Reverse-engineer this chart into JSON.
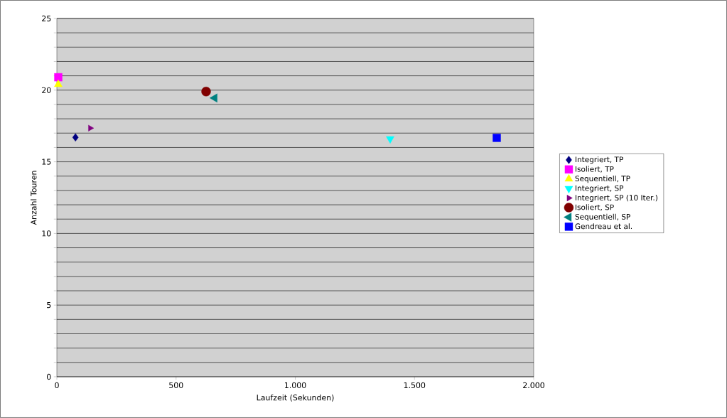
{
  "chart_data": {
    "type": "scatter",
    "xlabel": "Laufzeit (Sekunden)",
    "ylabel": "Anzahl Touren",
    "xlim": [
      0,
      2000
    ],
    "ylim": [
      0,
      25
    ],
    "xticks": [
      0,
      500,
      {
        "value": 1000,
        "label": "1.000"
      },
      {
        "value": 1500,
        "label": "1.500"
      },
      {
        "value": 2000,
        "label": "2.000"
      }
    ],
    "yticks": [
      0,
      {
        "value": 1,
        "label": null
      },
      {
        "value": 2,
        "label": null
      },
      {
        "value": 3,
        "label": null
      },
      {
        "value": 4,
        "label": null
      },
      5,
      {
        "value": 6,
        "label": null
      },
      {
        "value": 7,
        "label": null
      },
      {
        "value": 8,
        "label": null
      },
      {
        "value": 9,
        "label": null
      },
      10,
      {
        "value": 11,
        "label": null
      },
      {
        "value": 12,
        "label": null
      },
      {
        "value": 13,
        "label": null
      },
      {
        "value": 14,
        "label": null
      },
      15,
      {
        "value": 16,
        "label": null
      },
      {
        "value": 17,
        "label": null
      },
      {
        "value": 18,
        "label": null
      },
      {
        "value": 19,
        "label": null
      },
      20,
      {
        "value": 21,
        "label": null
      },
      {
        "value": 22,
        "label": null
      },
      {
        "value": 23,
        "label": null
      },
      {
        "value": 24,
        "label": null
      },
      25
    ],
    "grid": "y",
    "legend": "right",
    "series": [
      {
        "name": "Integriert, TP",
        "color": "#000080",
        "marker": "diamond",
        "x": [
          78
        ],
        "values": [
          16.7
        ]
      },
      {
        "name": "Isoliert, TP",
        "color": "#ff00ff",
        "marker": "square",
        "x": [
          6
        ],
        "values": [
          20.9
        ]
      },
      {
        "name": "Sequentiell, TP",
        "color": "#ffff00",
        "marker": "triangle",
        "x": [
          6
        ],
        "values": [
          20.4
        ]
      },
      {
        "name": "Integriert, SP",
        "color": "#00ffff",
        "marker": "triangle down",
        "x": [
          1398
        ],
        "values": [
          16.6
        ]
      },
      {
        "name": "Integriert, SP (10 Iter.)",
        "color": "#800080",
        "marker": "triangle right",
        "x": [
          140
        ],
        "values": [
          17.35
        ]
      },
      {
        "name": "Isoliert, SP",
        "color": "#800000",
        "marker": "circle",
        "x": [
          626
        ],
        "values": [
          19.9
        ]
      },
      {
        "name": "Sequentiell, SP",
        "color": "#008080",
        "marker": "triangle left",
        "x": [
          662
        ],
        "values": [
          19.45
        ]
      },
      {
        "name": "Gendreau et al.",
        "color": "#0000ff",
        "marker": "square",
        "x": [
          1845
        ],
        "values": [
          16.67
        ]
      }
    ]
  }
}
